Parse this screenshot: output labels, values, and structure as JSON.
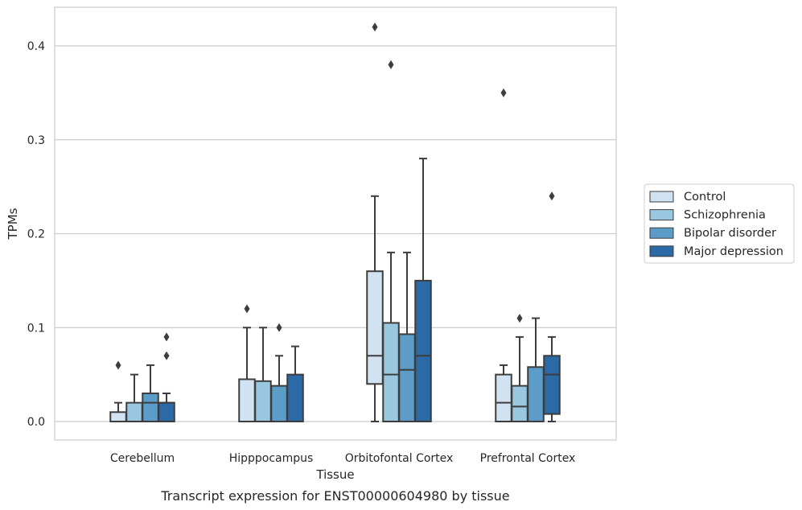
{
  "caption": "Transcript expression for ENST00000604980 by tissue",
  "chart_data": {
    "type": "box",
    "title": "",
    "xlabel": "Tissue",
    "ylabel": "TPMs",
    "ylim": [
      -0.02,
      0.44
    ],
    "yticks": [
      0.0,
      0.1,
      0.2,
      0.3,
      0.4
    ],
    "ytick_labels": [
      "0.0",
      "0.1",
      "0.2",
      "0.3",
      "0.4"
    ],
    "grid": "horizontal",
    "legend_position": "right",
    "categories": [
      "Cerebellum",
      "Hipppocampus",
      "Orbitofontal Cortex",
      "Prefrontal Cortex"
    ],
    "series": [
      {
        "name": "Control",
        "color": "#d1e2f2",
        "boxes": [
          {
            "q1": 0.0,
            "median": 0.0,
            "q3": 0.01,
            "whisker_low": 0.0,
            "whisker_high": 0.02,
            "outliers": [
              0.06
            ]
          },
          {
            "q1": 0.0,
            "median": 0.0,
            "q3": 0.045,
            "whisker_low": 0.0,
            "whisker_high": 0.1,
            "outliers": [
              0.12
            ]
          },
          {
            "q1": 0.04,
            "median": 0.07,
            "q3": 0.16,
            "whisker_low": 0.0,
            "whisker_high": 0.24,
            "outliers": [
              0.42
            ]
          },
          {
            "q1": 0.0,
            "median": 0.02,
            "q3": 0.05,
            "whisker_low": 0.0,
            "whisker_high": 0.06,
            "outliers": [
              0.35
            ]
          }
        ]
      },
      {
        "name": "Schizophrenia",
        "color": "#9ac7e0",
        "boxes": [
          {
            "q1": 0.0,
            "median": 0.0,
            "q3": 0.02,
            "whisker_low": 0.0,
            "whisker_high": 0.05,
            "outliers": []
          },
          {
            "q1": 0.0,
            "median": 0.0,
            "q3": 0.043,
            "whisker_low": 0.0,
            "whisker_high": 0.1,
            "outliers": []
          },
          {
            "q1": 0.0,
            "median": 0.05,
            "q3": 0.105,
            "whisker_low": 0.0,
            "whisker_high": 0.18,
            "outliers": [
              0.38
            ]
          },
          {
            "q1": 0.0,
            "median": 0.016,
            "q3": 0.038,
            "whisker_low": 0.0,
            "whisker_high": 0.09,
            "outliers": [
              0.11
            ]
          }
        ]
      },
      {
        "name": "Bipolar disorder",
        "color": "#5b9cc9",
        "boxes": [
          {
            "q1": 0.0,
            "median": 0.02,
            "q3": 0.03,
            "whisker_low": 0.0,
            "whisker_high": 0.06,
            "outliers": []
          },
          {
            "q1": 0.0,
            "median": 0.0,
            "q3": 0.038,
            "whisker_low": 0.0,
            "whisker_high": 0.07,
            "outliers": [
              0.1
            ]
          },
          {
            "q1": 0.0,
            "median": 0.055,
            "q3": 0.093,
            "whisker_low": 0.0,
            "whisker_high": 0.18,
            "outliers": []
          },
          {
            "q1": 0.0,
            "median": 0.0,
            "q3": 0.058,
            "whisker_low": 0.0,
            "whisker_high": 0.11,
            "outliers": []
          }
        ]
      },
      {
        "name": "Major depression",
        "color": "#2b6aa6",
        "boxes": [
          {
            "q1": 0.0,
            "median": 0.02,
            "q3": 0.02,
            "whisker_low": 0.0,
            "whisker_high": 0.03,
            "outliers": [
              0.07,
              0.09
            ]
          },
          {
            "q1": 0.0,
            "median": 0.0,
            "q3": 0.05,
            "whisker_low": 0.0,
            "whisker_high": 0.08,
            "outliers": []
          },
          {
            "q1": 0.0,
            "median": 0.07,
            "q3": 0.15,
            "whisker_low": 0.0,
            "whisker_high": 0.28,
            "outliers": []
          },
          {
            "q1": 0.008,
            "median": 0.05,
            "q3": 0.07,
            "whisker_low": 0.0,
            "whisker_high": 0.09,
            "outliers": [
              0.24
            ]
          }
        ]
      }
    ]
  }
}
